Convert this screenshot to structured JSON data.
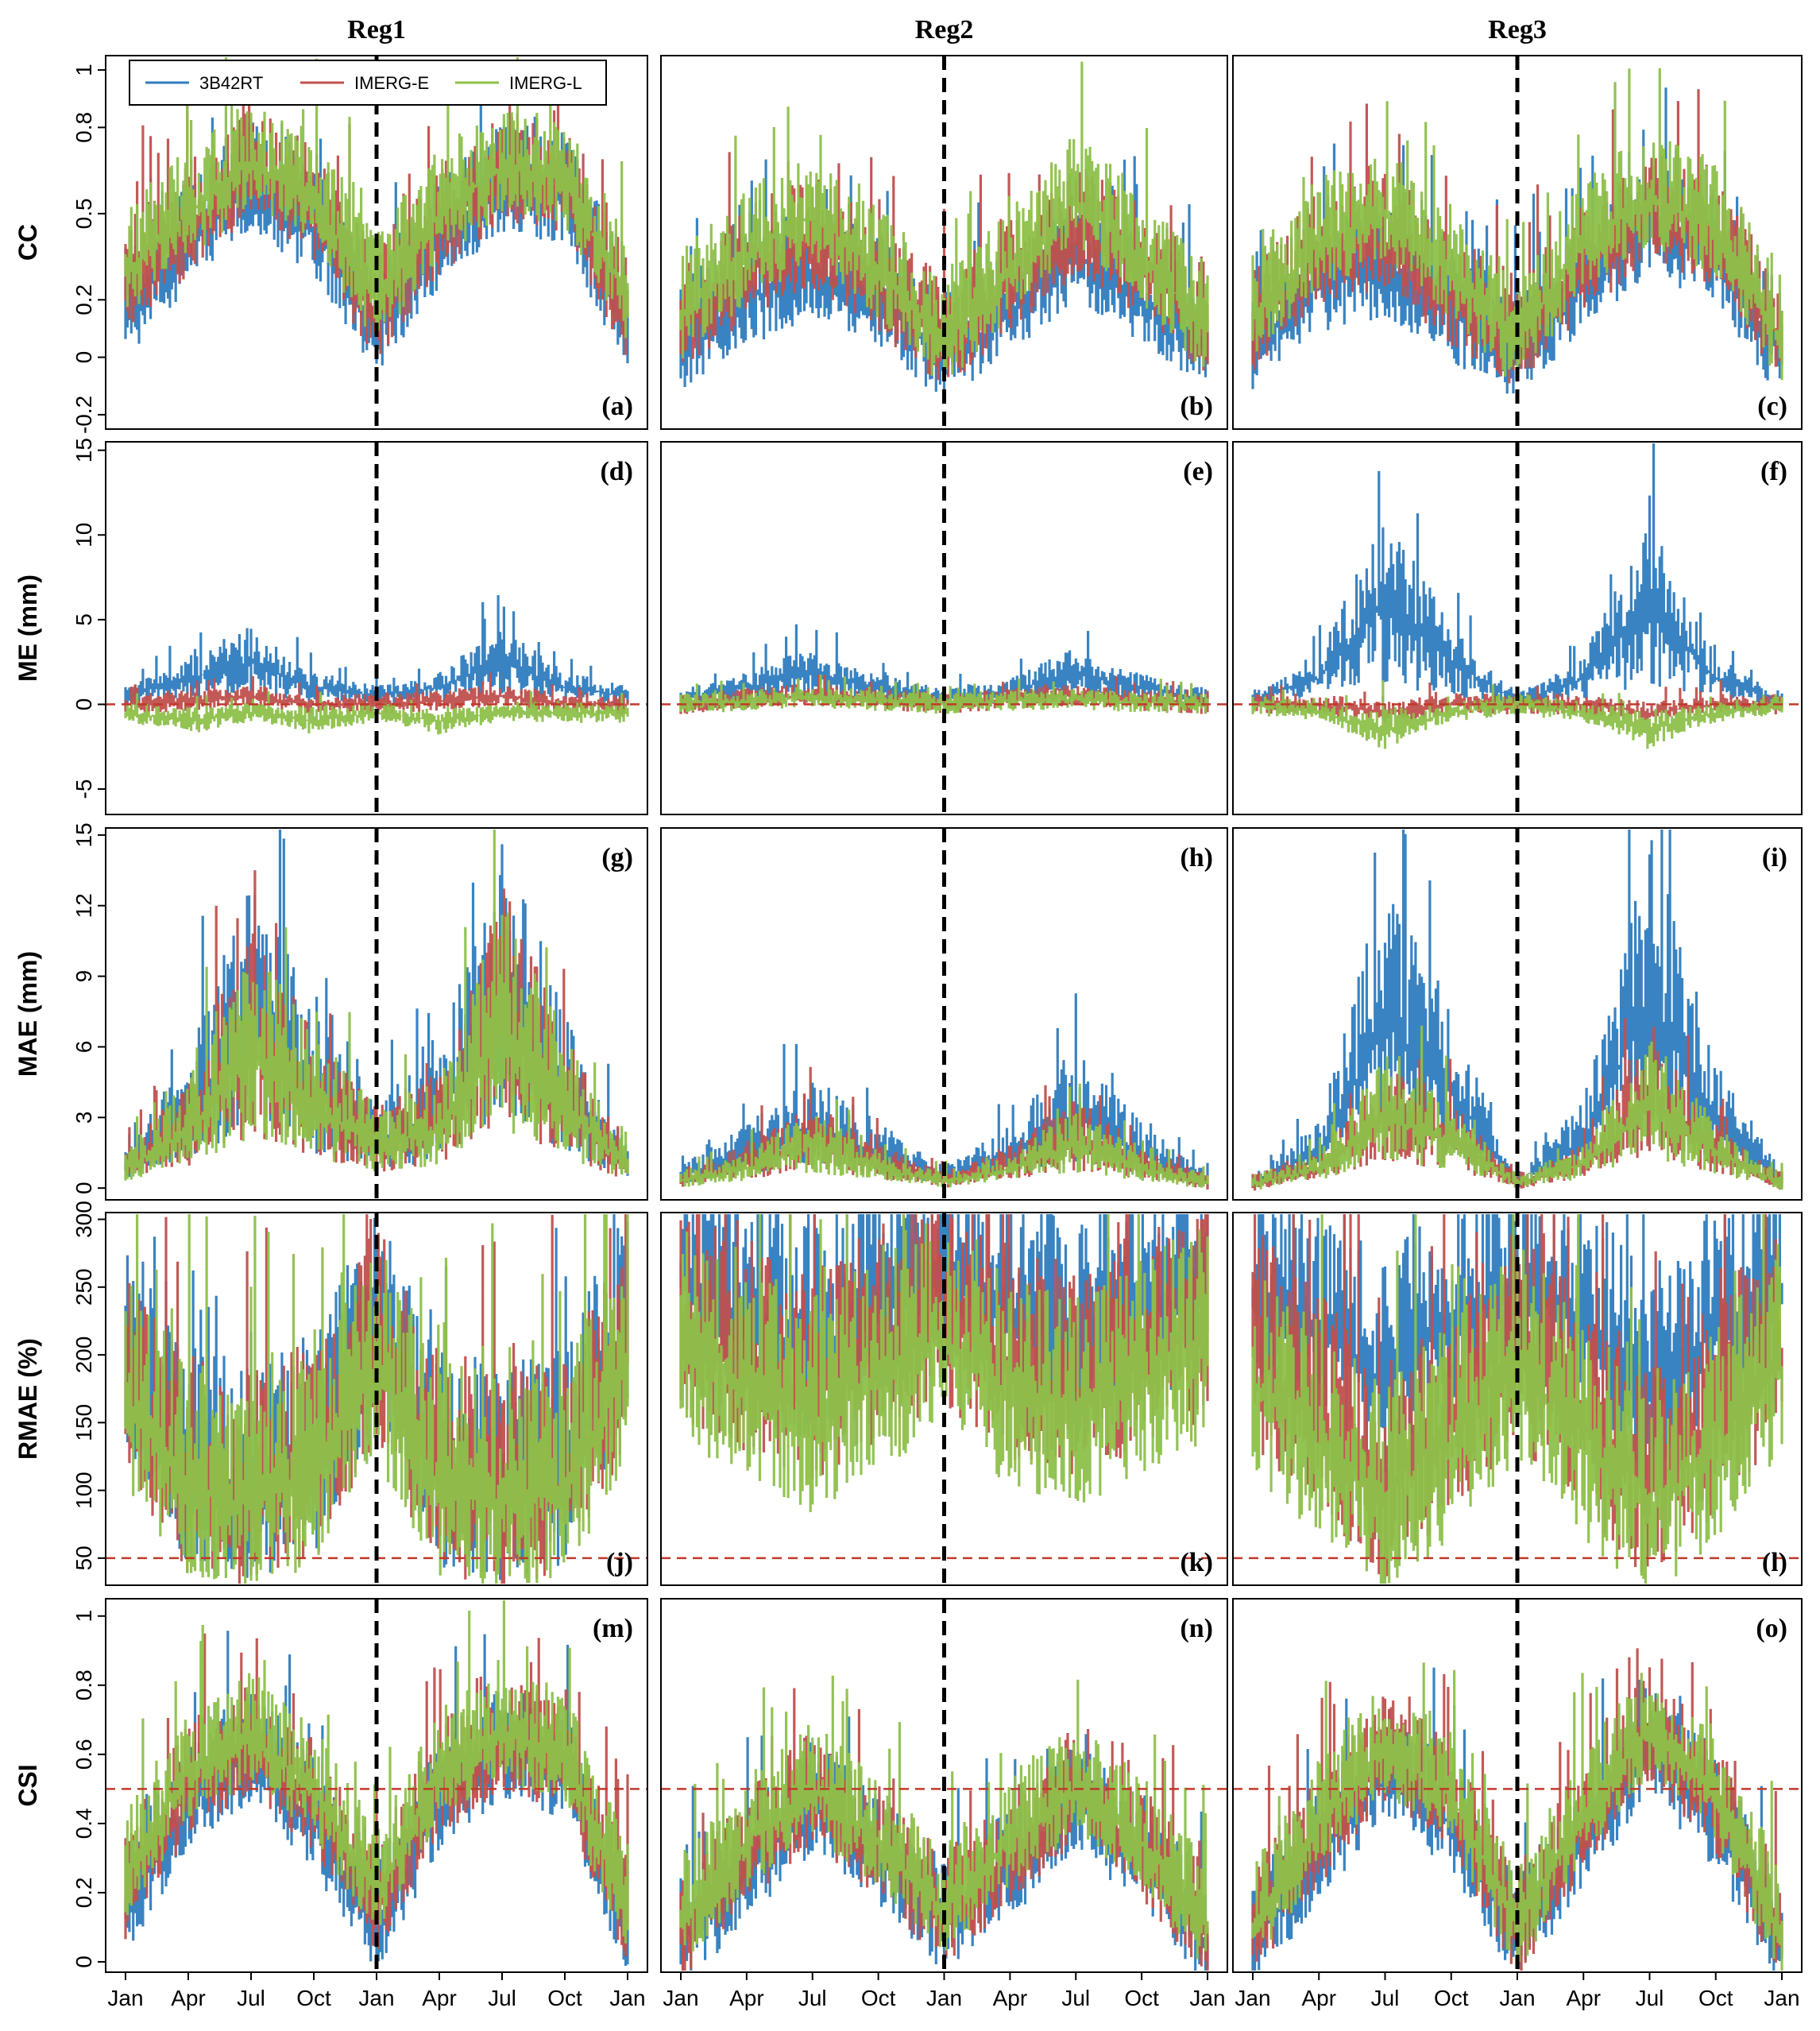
{
  "figure": {
    "columns": [
      "Reg1",
      "Reg2",
      "Reg3"
    ],
    "rows": [
      {
        "key": "cc",
        "ylabel": "CC",
        "ticks": [
          "-0.2",
          "0",
          "0.2",
          "0.5",
          "0.8",
          "1"
        ],
        "tick_values": [
          -0.2,
          0,
          0.2,
          0.5,
          0.8,
          1
        ],
        "ylim": [
          -0.25,
          1.05
        ],
        "ref_line": null
      },
      {
        "key": "me",
        "ylabel": "ME (mm)",
        "ticks": [
          "-5",
          "0",
          "5",
          "10",
          "15"
        ],
        "tick_values": [
          -5,
          0,
          5,
          10,
          15
        ],
        "ylim": [
          -6.5,
          15.5
        ],
        "ref_line": 0
      },
      {
        "key": "mae",
        "ylabel": "MAE (mm)",
        "ticks": [
          "0",
          "3",
          "6",
          "9",
          "12",
          "15"
        ],
        "tick_values": [
          0,
          3,
          6,
          9,
          12,
          15
        ],
        "ylim": [
          -0.5,
          15.3
        ],
        "ref_line": null
      },
      {
        "key": "rmae",
        "ylabel": "RMAE (%)",
        "ticks": [
          "50",
          "100",
          "150",
          "200",
          "250",
          "300"
        ],
        "tick_values": [
          50,
          100,
          150,
          200,
          250,
          300
        ],
        "ylim": [
          30,
          305
        ],
        "ref_line": 50
      },
      {
        "key": "csi",
        "ylabel": "CSI",
        "ticks": [
          "0",
          "0.2",
          "0.4",
          "0.6",
          "0.8",
          "1"
        ],
        "tick_values": [
          0,
          0.2,
          0.4,
          0.6,
          0.8,
          1
        ],
        "ylim": [
          -0.03,
          1.05
        ],
        "ref_line": 0.5
      }
    ],
    "panel_tags": [
      [
        "(a)",
        "(b)",
        "(c)"
      ],
      [
        "(d)",
        "(e)",
        "(f)"
      ],
      [
        "(g)",
        "(h)",
        "(i)"
      ],
      [
        "(j)",
        "(k)",
        "(l)"
      ],
      [
        "(m)",
        "(n)",
        "(o)"
      ]
    ],
    "x_ticks": [
      "Jan",
      "Apr",
      "Jul",
      "Oct",
      "Jan",
      "Apr",
      "Jul",
      "Oct",
      "Jan"
    ],
    "legend": [
      {
        "label": "3B42RT",
        "color": "#2e7cbf"
      },
      {
        "label": "IMERG-E",
        "color": "#c0504d"
      },
      {
        "label": "IMERG-L",
        "color": "#8dc04a"
      }
    ],
    "ref_line_color": "#c0392b",
    "divider_note": "dashed vertical line at Jan of second year"
  },
  "chart_data": {
    "type": "line",
    "title": "",
    "xlabel": "",
    "x": [
      "Jan",
      "Apr",
      "Jul",
      "Oct",
      "Jan",
      "Apr",
      "Jul",
      "Oct",
      "Jan"
    ],
    "series_names": [
      "3B42RT",
      "IMERG-E",
      "IMERG-L"
    ],
    "panels": {
      "cc": {
        "Reg1": {
          "3B42RT": [
            0.15,
            0.4,
            0.6,
            0.45,
            0.1,
            0.4,
            0.6,
            0.55,
            0.1
          ],
          "IMERG-E": [
            0.25,
            0.45,
            0.65,
            0.5,
            0.15,
            0.45,
            0.62,
            0.6,
            0.15
          ],
          "IMERG-L": [
            0.3,
            0.5,
            0.68,
            0.55,
            0.2,
            0.5,
            0.66,
            0.62,
            0.2
          ]
        },
        "Reg2": {
          "3B42RT": [
            0.05,
            0.2,
            0.3,
            0.2,
            0.0,
            0.15,
            0.35,
            0.2,
            0.05
          ],
          "IMERG-E": [
            0.1,
            0.3,
            0.4,
            0.25,
            0.05,
            0.25,
            0.45,
            0.3,
            0.1
          ],
          "IMERG-L": [
            0.15,
            0.35,
            0.5,
            0.3,
            0.05,
            0.3,
            0.55,
            0.35,
            0.1
          ]
        },
        "Reg3": {
          "3B42RT": [
            0.05,
            0.25,
            0.3,
            0.15,
            0.0,
            0.25,
            0.45,
            0.35,
            0.0
          ],
          "IMERG-E": [
            0.1,
            0.35,
            0.4,
            0.2,
            0.05,
            0.3,
            0.5,
            0.4,
            0.05
          ],
          "IMERG-L": [
            0.15,
            0.4,
            0.5,
            0.3,
            0.05,
            0.4,
            0.55,
            0.45,
            0.05
          ]
        }
      },
      "me": {
        "Reg1": {
          "3B42RT": [
            0.5,
            1.5,
            2.5,
            1.0,
            0.5,
            1.0,
            2.5,
            1.0,
            0.5
          ],
          "IMERG-E": [
            0.0,
            0.2,
            0.5,
            0.0,
            0.0,
            0.2,
            0.5,
            0.0,
            0.0
          ],
          "IMERG-L": [
            -0.5,
            -1.0,
            -0.5,
            -1.0,
            -0.5,
            -1.0,
            -0.5,
            -0.5,
            -0.5
          ]
        },
        "Reg2": {
          "3B42RT": [
            0.3,
            1.0,
            1.8,
            1.0,
            0.3,
            0.8,
            1.8,
            1.0,
            0.3
          ],
          "IMERG-E": [
            0.0,
            0.3,
            0.6,
            0.3,
            0.0,
            0.3,
            0.5,
            0.2,
            0.0
          ],
          "IMERG-L": [
            0.0,
            0.2,
            0.4,
            0.2,
            0.0,
            0.2,
            0.3,
            0.1,
            0.0
          ]
        },
        "Reg3": {
          "3B42RT": [
            0.3,
            1.5,
            6.0,
            2.5,
            0.2,
            1.5,
            6.0,
            1.5,
            0.2
          ],
          "IMERG-E": [
            0.0,
            0.0,
            -0.5,
            0.0,
            0.0,
            0.0,
            -0.5,
            0.0,
            0.0
          ],
          "IMERG-L": [
            0.0,
            -0.5,
            -1.5,
            -0.5,
            0.0,
            -0.5,
            -1.5,
            -0.5,
            0.0
          ]
        }
      },
      "mae": {
        "Reg1": {
          "3B42RT": [
            1.0,
            3.0,
            7.0,
            4.0,
            2.0,
            3.0,
            8.0,
            4.0,
            1.0
          ],
          "IMERG-E": [
            0.8,
            2.5,
            6.0,
            3.5,
            1.8,
            2.5,
            7.0,
            3.5,
            0.8
          ],
          "IMERG-L": [
            0.8,
            2.5,
            5.5,
            3.5,
            1.8,
            2.5,
            6.5,
            3.5,
            0.8
          ]
        },
        "Reg2": {
          "3B42RT": [
            0.5,
            1.5,
            2.5,
            1.5,
            0.5,
            1.5,
            3.0,
            1.5,
            0.3
          ],
          "IMERG-E": [
            0.3,
            1.0,
            2.0,
            1.0,
            0.3,
            1.0,
            2.0,
            1.0,
            0.2
          ],
          "IMERG-L": [
            0.3,
            0.8,
            1.8,
            0.8,
            0.3,
            0.8,
            1.8,
            0.8,
            0.2
          ]
        },
        "Reg3": {
          "3B42RT": [
            0.3,
            1.5,
            7.0,
            4.0,
            0.3,
            2.0,
            8.0,
            3.0,
            0.3
          ],
          "IMERG-E": [
            0.2,
            0.8,
            3.0,
            2.0,
            0.2,
            1.0,
            3.5,
            1.5,
            0.2
          ],
          "IMERG-L": [
            0.2,
            0.8,
            3.0,
            2.0,
            0.2,
            1.0,
            3.5,
            1.5,
            0.2
          ]
        }
      },
      "rmae": {
        "Reg1": {
          "3B42RT": [
            200,
            110,
            100,
            120,
            220,
            110,
            100,
            110,
            220
          ],
          "IMERG-E": [
            180,
            105,
            95,
            115,
            200,
            105,
            95,
            105,
            200
          ],
          "IMERG-L": [
            170,
            100,
            90,
            110,
            190,
            100,
            90,
            100,
            190
          ]
        },
        "Reg2": {
          "3B42RT": [
            250,
            230,
            200,
            240,
            260,
            230,
            200,
            230,
            250
          ],
          "IMERG-E": [
            220,
            190,
            170,
            200,
            230,
            190,
            170,
            200,
            220
          ],
          "IMERG-L": [
            200,
            170,
            150,
            180,
            210,
            170,
            150,
            180,
            200
          ]
        },
        "Reg3": {
          "3B42RT": [
            250,
            220,
            180,
            230,
            250,
            220,
            170,
            220,
            250
          ],
          "IMERG-E": [
            200,
            150,
            100,
            150,
            200,
            150,
            100,
            150,
            200
          ],
          "IMERG-L": [
            180,
            130,
            90,
            130,
            190,
            130,
            85,
            130,
            190
          ]
        }
      },
      "csi": {
        "Reg1": {
          "3B42RT": [
            0.15,
            0.45,
            0.6,
            0.4,
            0.1,
            0.45,
            0.6,
            0.55,
            0.1
          ],
          "IMERG-E": [
            0.2,
            0.5,
            0.62,
            0.45,
            0.15,
            0.5,
            0.62,
            0.58,
            0.12
          ],
          "IMERG-L": [
            0.25,
            0.55,
            0.65,
            0.5,
            0.2,
            0.55,
            0.66,
            0.6,
            0.15
          ]
        },
        "Reg2": {
          "3B42RT": [
            0.05,
            0.25,
            0.45,
            0.3,
            0.1,
            0.25,
            0.45,
            0.3,
            0.05
          ],
          "IMERG-E": [
            0.08,
            0.3,
            0.48,
            0.32,
            0.12,
            0.3,
            0.48,
            0.32,
            0.08
          ],
          "IMERG-L": [
            0.1,
            0.35,
            0.5,
            0.35,
            0.15,
            0.35,
            0.5,
            0.35,
            0.1
          ]
        },
        "Reg3": {
          "3B42RT": [
            0.05,
            0.3,
            0.55,
            0.4,
            0.05,
            0.35,
            0.62,
            0.4,
            0.05
          ],
          "IMERG-E": [
            0.08,
            0.35,
            0.6,
            0.45,
            0.08,
            0.4,
            0.66,
            0.45,
            0.08
          ],
          "IMERG-L": [
            0.1,
            0.4,
            0.62,
            0.48,
            0.1,
            0.42,
            0.68,
            0.48,
            0.08
          ]
        }
      }
    }
  }
}
